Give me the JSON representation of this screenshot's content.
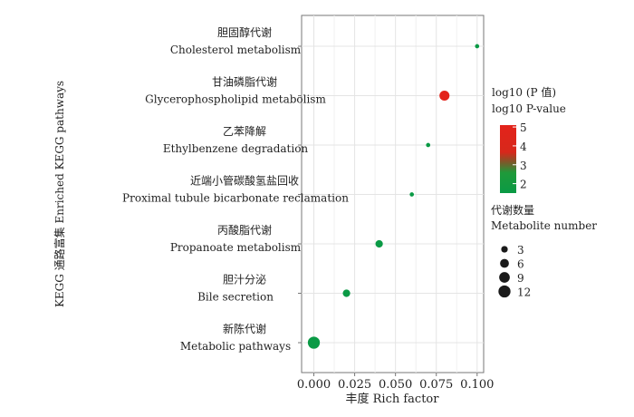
{
  "chart_data": {
    "type": "scatter",
    "xlabel": "丰度 Rich factor",
    "ylabel": "KEGG 通路富集 Enriched KEGG pathways",
    "xlim": [
      -0.0075,
      0.104
    ],
    "xticks": [
      "0.000",
      "0.025",
      "0.050",
      "0.075",
      "0.100"
    ],
    "xtick_values": [
      0,
      0.025,
      0.05,
      0.075,
      0.1
    ],
    "grid": true,
    "points": [
      {
        "zh": "胆固醇代谢",
        "en": "Cholesterol metabolism",
        "x": 0.1,
        "log10p": 2.0,
        "count": 1
      },
      {
        "zh": "甘油磷脂代谢",
        "en": "Glycerophospholipid metabolism",
        "x": 0.08,
        "log10p": 4.7,
        "count": 8
      },
      {
        "zh": "乙苯降解",
        "en": "Ethylbenzene degradation",
        "x": 0.07,
        "log10p": 2.0,
        "count": 1
      },
      {
        "zh": "近端小管碳酸氢盐回收",
        "en": "Proximal tubule bicarbonate reclamation",
        "x": 0.06,
        "log10p": 2.0,
        "count": 1
      },
      {
        "zh": "丙酸脂代谢",
        "en": "Propanoate metabolism",
        "x": 0.04,
        "log10p": 2.0,
        "count": 4
      },
      {
        "zh": "胆汁分泌",
        "en": "Bile secretion",
        "x": 0.02,
        "log10p": 2.0,
        "count": 4
      },
      {
        "zh": "新陈代谢",
        "en": "Metabolic pathways",
        "x": 0.0,
        "log10p": 2.0,
        "count": 12
      }
    ],
    "color_legend": {
      "title_zh": "log10 (P 值)",
      "title_en": "log10 P-value",
      "ticks": [
        "5",
        "4",
        "3",
        "2"
      ],
      "range": [
        1.5,
        5.1
      ],
      "low_color": "#0a9a45",
      "high_color": "#e3231b"
    },
    "size_legend": {
      "title_zh": "代谢数量",
      "title_en": "Metabolite number",
      "values": [
        3,
        6,
        9,
        12
      ]
    }
  }
}
